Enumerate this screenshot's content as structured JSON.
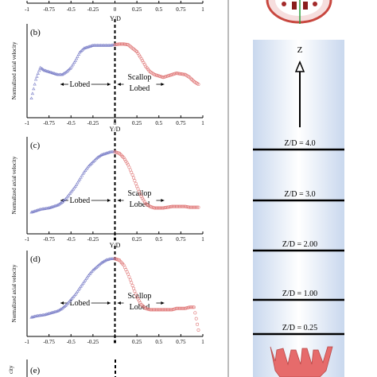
{
  "top_axis": {
    "ticks": [
      "-1",
      "-0.75",
      "-0.5",
      "-0.25",
      "0",
      "0.25",
      "0.5",
      "0.75",
      "1"
    ],
    "xlabel": "Y/D"
  },
  "panels": [
    {
      "label": "(b)",
      "ylabel": "Normalized axial velocity",
      "left_text": "Lobed",
      "right_text_1": "Scallop",
      "right_text_2": "Lobed",
      "xlabel": "Y/D",
      "xticks": [
        "-1",
        "-0.75",
        "-0.5",
        "-0.25",
        "0",
        "0.25",
        "0.5",
        "0.75",
        "1"
      ]
    },
    {
      "label": "(c)",
      "ylabel": "Normalized axial velocity",
      "left_text": "Lobed",
      "right_text_1": "Scallop",
      "right_text_2": "Lobed",
      "xlabel": "Y/D",
      "xticks": [
        "-1",
        "-0.75",
        "-0.5",
        "-0.25",
        "0",
        "0.25",
        "0.5",
        "0.75",
        "1"
      ]
    },
    {
      "label": "(d)",
      "ylabel": "Normalized axial velocity",
      "left_text": "Lobed",
      "right_text_1": "Scallop",
      "right_text_2": "Lobed",
      "xlabel": "",
      "xticks": [
        "-1",
        "-0.75",
        "-0.5",
        "-0.25",
        "0",
        "0.25",
        "0.5",
        "0.75",
        "1"
      ]
    }
  ],
  "bottom_panel_label": "(e)",
  "bottom_ylabel_fragment": "city",
  "diagram": {
    "axis_label": "Z",
    "stations": [
      "Z/D = 4.0",
      "Z/D = 3.0",
      "Z/D = 2.00",
      "Z/D = 1.00",
      "Z/D = 0.25"
    ]
  },
  "colors": {
    "lobed_series": "#7b7fc8",
    "scallop_series": "#e07a7a",
    "jet_fill": "#dbe6f4",
    "nozzle": "#e06a6a"
  },
  "chart_data": [
    {
      "type": "scatter",
      "title": "(b)",
      "xlabel": "Y/D",
      "ylabel": "Normalized axial velocity",
      "xlim": [
        -1,
        1
      ],
      "series": [
        {
          "name": "Lobed",
          "x": [
            -0.95,
            -0.9,
            -0.85,
            -0.8,
            -0.75,
            -0.7,
            -0.65,
            -0.6,
            -0.55,
            -0.5,
            -0.45,
            -0.4,
            -0.35,
            -0.3,
            -0.25,
            -0.2,
            -0.15,
            -0.1,
            -0.05,
            0.0
          ],
          "y": [
            0.28,
            0.55,
            0.72,
            0.68,
            0.66,
            0.64,
            0.62,
            0.62,
            0.66,
            0.72,
            0.82,
            0.94,
            1.0,
            1.02,
            1.04,
            1.04,
            1.04,
            1.04,
            1.04,
            1.05
          ]
        },
        {
          "name": "Scallop Lobed",
          "x": [
            0.0,
            0.05,
            0.1,
            0.15,
            0.2,
            0.25,
            0.3,
            0.35,
            0.4,
            0.45,
            0.5,
            0.55,
            0.6,
            0.65,
            0.7,
            0.75,
            0.8,
            0.85,
            0.9,
            0.95
          ],
          "y": [
            1.05,
            1.06,
            1.06,
            1.05,
            1.0,
            0.95,
            0.85,
            0.74,
            0.66,
            0.62,
            0.6,
            0.58,
            0.6,
            0.62,
            0.64,
            0.63,
            0.62,
            0.58,
            0.52,
            0.48
          ]
        }
      ]
    },
    {
      "type": "scatter",
      "title": "(c)",
      "xlabel": "Y/D",
      "ylabel": "Normalized axial velocity",
      "xlim": [
        -1,
        1
      ],
      "series": [
        {
          "name": "Lobed",
          "x": [
            -0.95,
            -0.9,
            -0.85,
            -0.8,
            -0.75,
            -0.7,
            -0.65,
            -0.6,
            -0.55,
            -0.5,
            -0.45,
            -0.4,
            -0.35,
            -0.3,
            -0.25,
            -0.2,
            -0.15,
            -0.1,
            -0.05,
            0.0
          ],
          "y": [
            0.3,
            0.32,
            0.34,
            0.35,
            0.36,
            0.38,
            0.4,
            0.44,
            0.5,
            0.58,
            0.66,
            0.76,
            0.86,
            0.94,
            1.0,
            1.06,
            1.1,
            1.12,
            1.14,
            1.14
          ]
        },
        {
          "name": "Scallop Lobed",
          "x": [
            0.0,
            0.05,
            0.1,
            0.15,
            0.2,
            0.25,
            0.3,
            0.35,
            0.4,
            0.45,
            0.5,
            0.55,
            0.6,
            0.65,
            0.7,
            0.75,
            0.8,
            0.85,
            0.9,
            0.95
          ],
          "y": [
            1.14,
            1.12,
            1.06,
            0.96,
            0.82,
            0.66,
            0.52,
            0.42,
            0.38,
            0.36,
            0.36,
            0.36,
            0.37,
            0.38,
            0.38,
            0.38,
            0.38,
            0.37,
            0.37,
            0.37
          ]
        }
      ]
    },
    {
      "type": "scatter",
      "title": "(d)",
      "xlabel": "",
      "ylabel": "Normalized axial velocity",
      "xlim": [
        -1,
        1
      ],
      "series": [
        {
          "name": "Lobed",
          "x": [
            -0.95,
            -0.9,
            -0.85,
            -0.8,
            -0.75,
            -0.7,
            -0.65,
            -0.6,
            -0.55,
            -0.5,
            -0.45,
            -0.4,
            -0.35,
            -0.3,
            -0.25,
            -0.2,
            -0.15,
            -0.1,
            -0.05,
            0.0
          ],
          "y": [
            0.3,
            0.32,
            0.33,
            0.34,
            0.36,
            0.38,
            0.4,
            0.44,
            0.5,
            0.58,
            0.66,
            0.76,
            0.86,
            0.96,
            1.04,
            1.1,
            1.16,
            1.2,
            1.22,
            1.22
          ]
        },
        {
          "name": "Scallop Lobed",
          "x": [
            0.0,
            0.05,
            0.1,
            0.15,
            0.2,
            0.25,
            0.3,
            0.35,
            0.4,
            0.45,
            0.5,
            0.55,
            0.6,
            0.65,
            0.7,
            0.75,
            0.8,
            0.85,
            0.9,
            0.95
          ],
          "y": [
            1.22,
            1.2,
            1.12,
            0.98,
            0.8,
            0.62,
            0.5,
            0.44,
            0.42,
            0.42,
            0.42,
            0.42,
            0.42,
            0.42,
            0.44,
            0.44,
            0.44,
            0.46,
            0.46,
            0.1
          ]
        }
      ]
    }
  ]
}
